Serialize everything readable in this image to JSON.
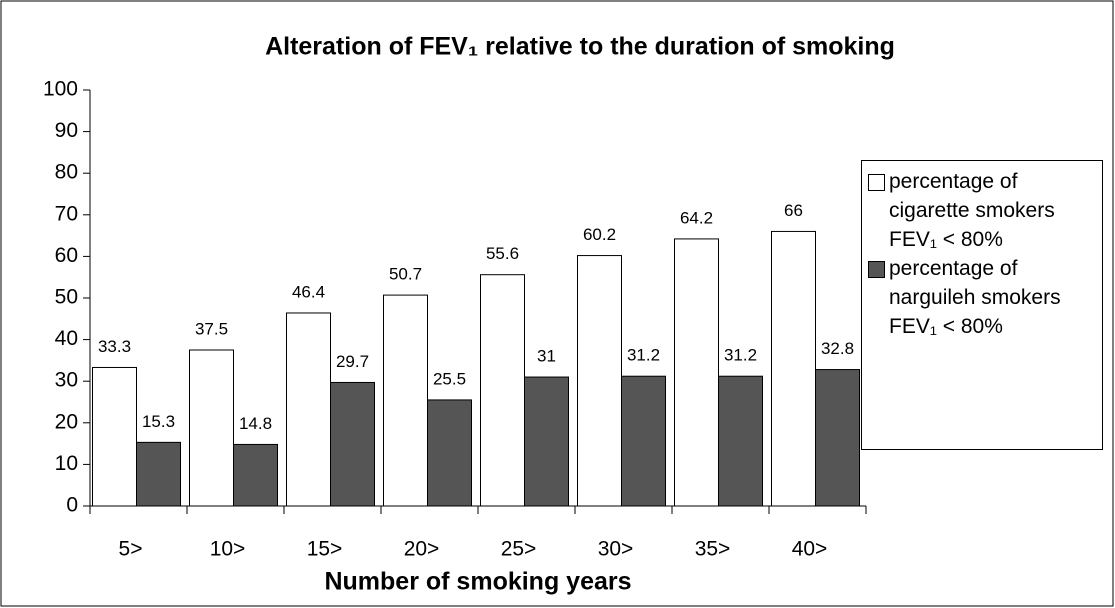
{
  "chart_data": {
    "type": "bar",
    "title": "Alteration of FEV₁ relative to the duration of smoking",
    "x_label": "Number of smoking years",
    "categories": [
      "5>",
      "10>",
      "15>",
      "20>",
      "25>",
      "30>",
      "35>",
      "40>"
    ],
    "series": [
      {
        "name": "percentage of cigarette smokers FEV₁ < 80%",
        "color": "#ffffff",
        "values": [
          33.3,
          37.5,
          46.4,
          50.7,
          55.6,
          60.2,
          64.2,
          66
        ]
      },
      {
        "name": "percentage of narguileh smokers FEV₁ < 80%",
        "color": "#555555",
        "values": [
          15.3,
          14.8,
          29.7,
          25.5,
          31,
          31.2,
          31.2,
          32.8
        ]
      }
    ],
    "ylim": [
      0,
      100
    ],
    "yticks": [
      0,
      10,
      20,
      30,
      40,
      50,
      60,
      70,
      80,
      90,
      100
    ],
    "grid": false,
    "legend": "right"
  }
}
